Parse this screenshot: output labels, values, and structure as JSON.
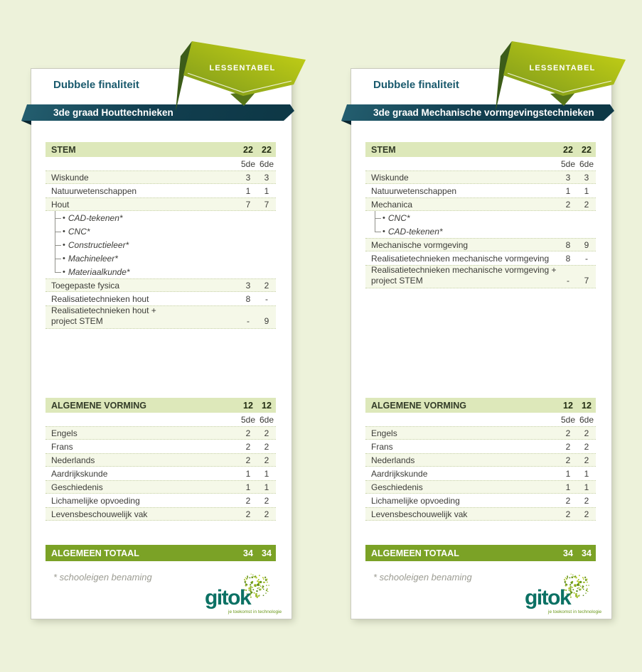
{
  "ribbon": {
    "label": "LESSENTABEL"
  },
  "columns": {
    "c5": "5de",
    "c6": "6de"
  },
  "footnote": "* schooleigen benaming",
  "logo": {
    "name": "gitok",
    "tagline": "je toekomst in technologie"
  },
  "colors": {
    "page_background": "#edf2da",
    "teal_dark": "#0f3b4b",
    "teal_text": "#1a5a6d",
    "ribbon_green": "#a9bf14",
    "ribbon_fold": "#3c5c19",
    "section_header_green": "#dde8ba",
    "row_stripe": "#f5f8e8",
    "total_bar_green": "#7ba226",
    "logo_teal": "#0c7164",
    "logo_green": "#6a981a"
  },
  "cards": [
    {
      "subtitle": "Dubbele finaliteit",
      "title": "3de graad Houttechnieken",
      "sections": [
        {
          "header": "STEM",
          "t5": "22",
          "t6": "22",
          "rows": [
            {
              "label": "Wiskunde",
              "v5": "3",
              "v6": "3",
              "shaded": true
            },
            {
              "label": "Natuurwetenschappen",
              "v5": "1",
              "v6": "1"
            },
            {
              "label": "Hout",
              "v5": "7",
              "v6": "7",
              "shaded": true
            },
            {
              "label": "CAD-tekenen*",
              "sub": true
            },
            {
              "label": "CNC*",
              "sub": true
            },
            {
              "label": "Constructieleer*",
              "sub": true
            },
            {
              "label": "Machineleer*",
              "sub": true
            },
            {
              "label": "Materiaalkunde*",
              "sub": true
            },
            {
              "label": "Toegepaste fysica",
              "v5": "3",
              "v6": "2",
              "shaded": true
            },
            {
              "label": "Realisatietechnieken hout",
              "v5": "8",
              "v6": "-"
            },
            {
              "label": "Realisatietechnieken hout +",
              "label2": "project STEM",
              "v5": "-",
              "v6": "9",
              "shaded": true
            }
          ]
        },
        {
          "header": "ALGEMENE VORMING",
          "t5": "12",
          "t6": "12",
          "rows": [
            {
              "label": "Engels",
              "v5": "2",
              "v6": "2",
              "shaded": true
            },
            {
              "label": "Frans",
              "v5": "2",
              "v6": "2"
            },
            {
              "label": "Nederlands",
              "v5": "2",
              "v6": "2",
              "shaded": true
            },
            {
              "label": "Aardrijkskunde",
              "v5": "1",
              "v6": "1"
            },
            {
              "label": "Geschiedenis",
              "v5": "1",
              "v6": "1",
              "shaded": true
            },
            {
              "label": "Lichamelijke opvoeding",
              "v5": "2",
              "v6": "2"
            },
            {
              "label": "Levensbeschouwelijk vak",
              "v5": "2",
              "v6": "2",
              "shaded": true
            }
          ]
        }
      ],
      "total": {
        "label": "ALGEMEEN TOTAAL",
        "t5": "34",
        "t6": "34"
      }
    },
    {
      "subtitle": "Dubbele finaliteit",
      "title": "3de graad Mechanische vormgevingstechnieken",
      "sections": [
        {
          "header": "STEM",
          "t5": "22",
          "t6": "22",
          "rows": [
            {
              "label": "Wiskunde",
              "v5": "3",
              "v6": "3",
              "shaded": true
            },
            {
              "label": "Natuurwetenschappen",
              "v5": "1",
              "v6": "1"
            },
            {
              "label": "Mechanica",
              "v5": "2",
              "v6": "2",
              "shaded": true
            },
            {
              "label": "CNC*",
              "sub": true
            },
            {
              "label": "CAD-tekenen*",
              "sub": true
            },
            {
              "label": "Mechanische vormgeving",
              "v5": "8",
              "v6": "9",
              "shaded": true
            },
            {
              "label": "Realisatietechnieken mechanische vormgeving",
              "v5": "8",
              "v6": "-"
            },
            {
              "label": "Realisatietechnieken mechanische vormgeving +",
              "label2": "project STEM",
              "v5": "-",
              "v6": "7",
              "shaded": true
            }
          ]
        },
        {
          "header": "ALGEMENE VORMING",
          "t5": "12",
          "t6": "12",
          "rows": [
            {
              "label": "Engels",
              "v5": "2",
              "v6": "2",
              "shaded": true
            },
            {
              "label": "Frans",
              "v5": "2",
              "v6": "2"
            },
            {
              "label": "Nederlands",
              "v5": "2",
              "v6": "2",
              "shaded": true
            },
            {
              "label": "Aardrijkskunde",
              "v5": "1",
              "v6": "1"
            },
            {
              "label": "Geschiedenis",
              "v5": "1",
              "v6": "1",
              "shaded": true
            },
            {
              "label": "Lichamelijke opvoeding",
              "v5": "2",
              "v6": "2"
            },
            {
              "label": "Levensbeschouwelijk vak",
              "v5": "2",
              "v6": "2",
              "shaded": true
            }
          ]
        }
      ],
      "total": {
        "label": "ALGEMEEN TOTAAL",
        "t5": "34",
        "t6": "34"
      }
    }
  ]
}
